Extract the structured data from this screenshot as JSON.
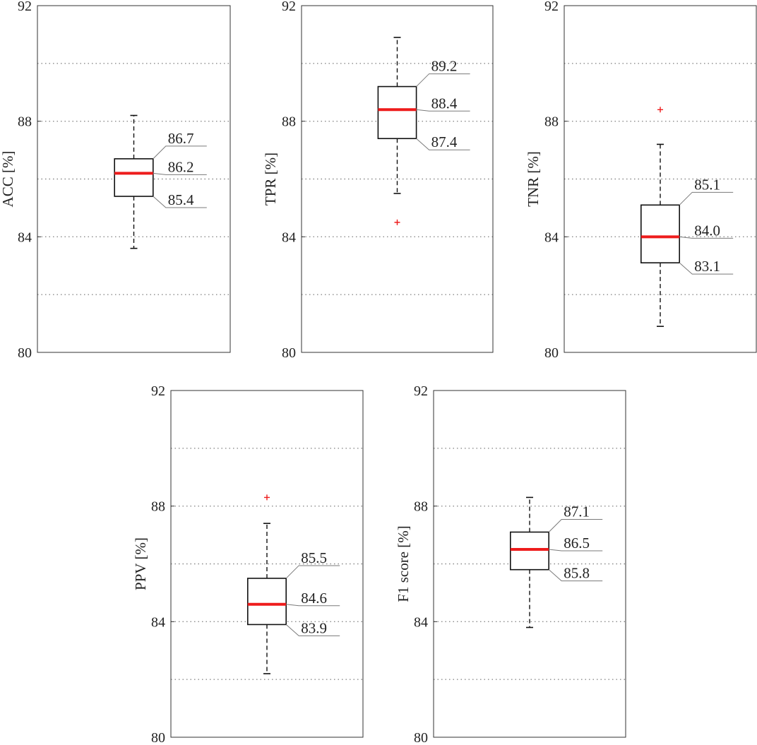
{
  "chart_data": [
    {
      "type": "box",
      "ylabel": "ACC [%]",
      "ylim": [
        80,
        92
      ],
      "yticks": [
        80,
        84,
        88,
        92
      ],
      "grid": "horizontal dotted at every 2",
      "box": {
        "whisker_low": 83.6,
        "q1": 85.4,
        "median": 86.2,
        "q3": 86.7,
        "whisker_high": 88.2,
        "outliers": []
      },
      "annotations": [
        "86.7",
        "86.2",
        "85.4"
      ]
    },
    {
      "type": "box",
      "ylabel": "TPR [%]",
      "ylim": [
        80,
        92
      ],
      "yticks": [
        80,
        84,
        88,
        92
      ],
      "grid": "horizontal dotted at every 2",
      "box": {
        "whisker_low": 85.5,
        "q1": 87.4,
        "median": 88.4,
        "q3": 89.2,
        "whisker_high": 90.9,
        "outliers": [
          84.5
        ]
      },
      "annotations": [
        "89.2",
        "88.4",
        "87.4"
      ]
    },
    {
      "type": "box",
      "ylabel": "TNR [%]",
      "ylim": [
        80,
        92
      ],
      "yticks": [
        80,
        84,
        88,
        92
      ],
      "grid": "horizontal dotted at every 2",
      "box": {
        "whisker_low": 80.9,
        "q1": 83.1,
        "median": 84.0,
        "q3": 85.1,
        "whisker_high": 87.2,
        "outliers": [
          88.4
        ]
      },
      "annotations": [
        "85.1",
        "84.0",
        "83.1"
      ]
    },
    {
      "type": "box",
      "ylabel": "PPV [%]",
      "ylim": [
        80,
        92
      ],
      "yticks": [
        80,
        84,
        88,
        92
      ],
      "grid": "horizontal dotted at every 2",
      "box": {
        "whisker_low": 82.2,
        "q1": 83.9,
        "median": 84.6,
        "q3": 85.5,
        "whisker_high": 87.4,
        "outliers": [
          88.3
        ]
      },
      "annotations": [
        "85.5",
        "84.6",
        "83.9"
      ]
    },
    {
      "type": "box",
      "ylabel": "F1 score [%]",
      "ylim": [
        80,
        92
      ],
      "yticks": [
        80,
        84,
        88,
        92
      ],
      "grid": "horizontal dotted at every 2",
      "box": {
        "whisker_low": 83.8,
        "q1": 85.8,
        "median": 86.5,
        "q3": 87.1,
        "whisker_high": 88.3,
        "outliers": []
      },
      "annotations": [
        "87.1",
        "86.5",
        "85.8"
      ]
    }
  ],
  "colors": {
    "median": "#ee1c1c",
    "outlier": "#ee1c1c",
    "box": "#111111",
    "grid": "#8a8a8a",
    "leader": "#7a7a7a"
  }
}
